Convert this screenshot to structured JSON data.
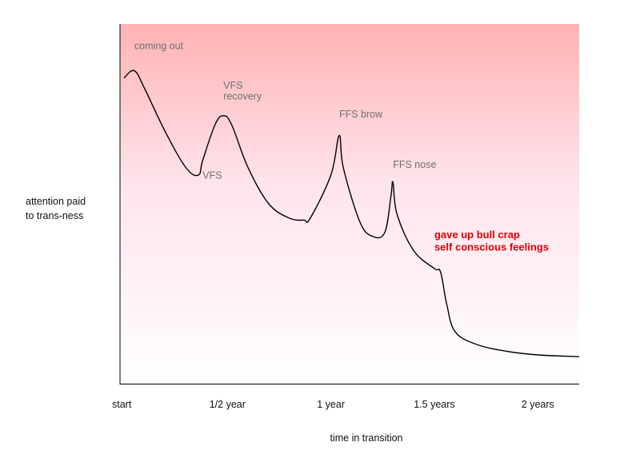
{
  "chart_data": {
    "type": "line",
    "title": "",
    "xlabel": "time in transition",
    "ylabel": [
      "attention paid",
      "to trans-ness"
    ],
    "x_ticks": [
      {
        "x": 0,
        "label": "start"
      },
      {
        "x": 0.5,
        "label": "1/2 year"
      },
      {
        "x": 1.0,
        "label": "1 year"
      },
      {
        "x": 1.5,
        "label": "1.5 years"
      },
      {
        "x": 2.0,
        "label": "2 years"
      }
    ],
    "xlim": [
      0,
      2.2
    ],
    "ylim": [
      0,
      1
    ],
    "series": [
      {
        "points": [
          [
            0.0,
            0.85
          ],
          [
            0.05,
            0.87
          ],
          [
            0.1,
            0.82
          ],
          [
            0.2,
            0.7
          ],
          [
            0.3,
            0.6
          ],
          [
            0.36,
            0.58
          ],
          [
            0.38,
            0.62
          ],
          [
            0.44,
            0.72
          ],
          [
            0.48,
            0.745
          ],
          [
            0.52,
            0.72
          ],
          [
            0.6,
            0.6
          ],
          [
            0.7,
            0.5
          ],
          [
            0.8,
            0.46
          ],
          [
            0.87,
            0.455
          ],
          [
            0.9,
            0.46
          ],
          [
            1.0,
            0.58
          ],
          [
            1.04,
            0.69
          ],
          [
            1.06,
            0.6
          ],
          [
            1.14,
            0.45
          ],
          [
            1.2,
            0.41
          ],
          [
            1.26,
            0.42
          ],
          [
            1.29,
            0.52
          ],
          [
            1.3,
            0.56
          ],
          [
            1.32,
            0.47
          ],
          [
            1.4,
            0.37
          ],
          [
            1.5,
            0.32
          ],
          [
            1.53,
            0.31
          ],
          [
            1.56,
            0.22
          ],
          [
            1.6,
            0.145
          ],
          [
            1.7,
            0.11
          ],
          [
            1.85,
            0.09
          ],
          [
            2.0,
            0.08
          ],
          [
            2.2,
            0.075
          ]
        ]
      }
    ],
    "annotations": [
      {
        "text": "coming out",
        "x": 0.05,
        "y": 0.93,
        "style": "gray"
      },
      {
        "text": "VFS",
        "x": 0.48,
        "y": 0.82,
        "style": "gray"
      },
      {
        "text": "recovery",
        "x": 0.48,
        "y": 0.79,
        "style": "gray"
      },
      {
        "text": "VFS",
        "x": 0.38,
        "y": 0.57,
        "style": "gray"
      },
      {
        "text": "FFS brow",
        "x": 1.04,
        "y": 0.74,
        "style": "gray"
      },
      {
        "text": "FFS nose",
        "x": 1.3,
        "y": 0.6,
        "style": "gray"
      },
      {
        "text": "gave up bull crap",
        "x": 1.5,
        "y": 0.405,
        "style": "highlight"
      },
      {
        "text": "self conscious feelings",
        "x": 1.5,
        "y": 0.37,
        "style": "highlight"
      }
    ],
    "background_gradient": {
      "top": "#ffb3b3",
      "mid": "#ffe4ec",
      "bottom": "#ffffff"
    },
    "line_color": "#000000",
    "highlight_color": "#e00000",
    "annotation_color": "#6f6f6f",
    "grid": false,
    "legend": "none"
  }
}
